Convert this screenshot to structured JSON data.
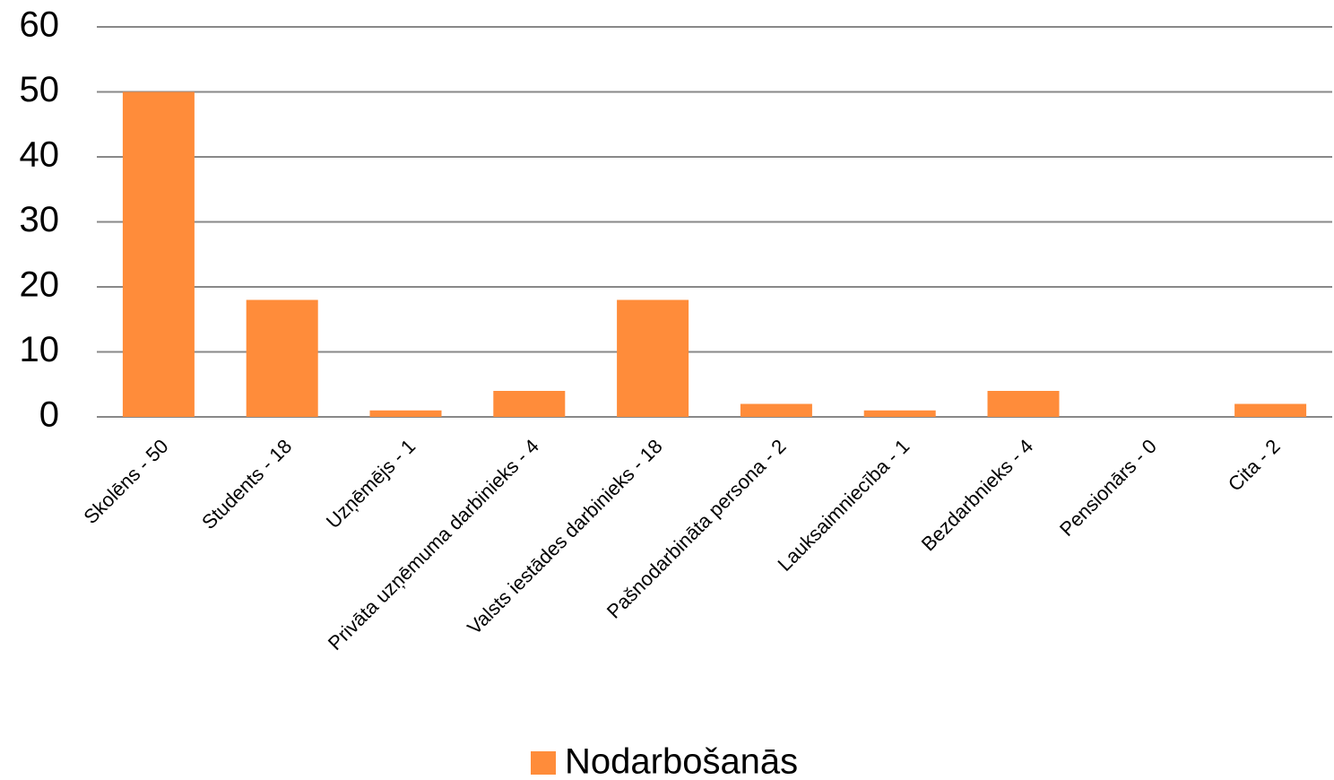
{
  "chart_data": {
    "type": "bar",
    "categories": [
      "Skolēns - 50",
      "Students - 18",
      "Uzņēmējs - 1",
      "Privāta uzņēmuma darbinieks - 4",
      "Valsts iestādes darbinieks - 18",
      "Pašnodarbināta persona - 2",
      "Lauksaimniecība - 1",
      "Bezdarbnieks - 4",
      "Pensionārs - 0",
      "Cita - 2"
    ],
    "series": [
      {
        "name": "Nodarbošanās",
        "color": "#ff8c3a",
        "values": [
          50,
          18,
          1,
          4,
          18,
          2,
          1,
          4,
          0,
          2
        ]
      }
    ],
    "ylim": [
      0,
      60
    ],
    "yticks": [
      0,
      10,
      20,
      30,
      40,
      50,
      60
    ],
    "grid": true,
    "legend": "bottom"
  }
}
